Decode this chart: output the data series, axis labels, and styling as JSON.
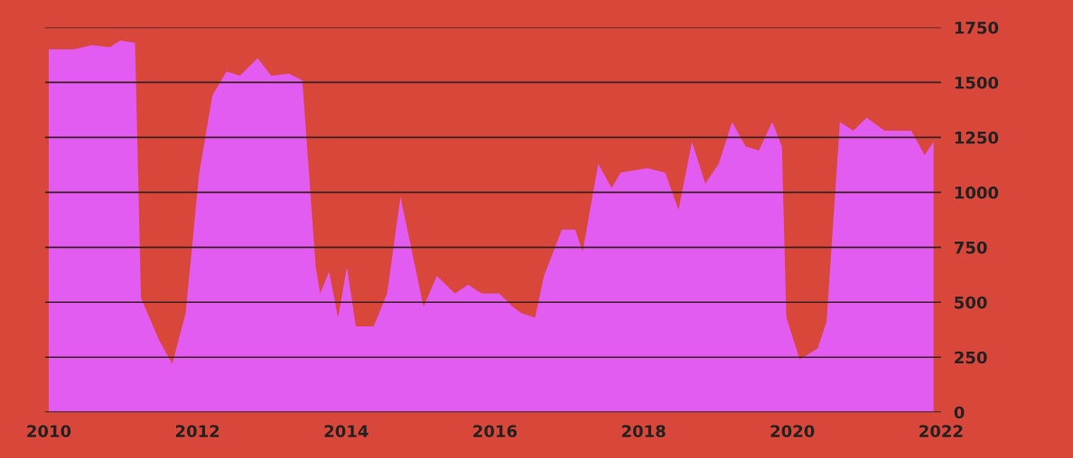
{
  "chart_data": {
    "type": "area",
    "x": [
      2010.0,
      2010.34,
      2010.58,
      2010.82,
      2010.96,
      2011.16,
      2011.24,
      2011.48,
      2011.66,
      2011.84,
      2012.02,
      2012.2,
      2012.39,
      2012.57,
      2012.81,
      2012.99,
      2013.23,
      2013.41,
      2013.59,
      2013.65,
      2013.77,
      2013.89,
      2014.01,
      2014.13,
      2014.37,
      2014.55,
      2014.73,
      2015.04,
      2015.22,
      2015.46,
      2015.64,
      2015.82,
      2016.06,
      2016.24,
      2016.36,
      2016.54,
      2016.66,
      2016.9,
      2017.08,
      2017.18,
      2017.39,
      2017.57,
      2017.69,
      2018.05,
      2018.29,
      2018.47,
      2018.65,
      2018.83,
      2019.01,
      2019.19,
      2019.37,
      2019.55,
      2019.73,
      2019.86,
      2019.92,
      2020.1,
      2020.34,
      2020.46,
      2020.64,
      2020.82,
      2021.0,
      2021.24,
      2021.6,
      2021.78,
      2021.9
    ],
    "values": [
      1650,
      1650,
      1670,
      1660,
      1690,
      1680,
      520,
      330,
      220,
      450,
      1080,
      1440,
      1550,
      1530,
      1610,
      1530,
      1540,
      1510,
      660,
      540,
      640,
      430,
      660,
      390,
      390,
      540,
      980,
      480,
      620,
      540,
      580,
      540,
      540,
      480,
      450,
      430,
      620,
      830,
      830,
      730,
      1130,
      1020,
      1090,
      1110,
      1090,
      920,
      1230,
      1040,
      1130,
      1320,
      1210,
      1190,
      1320,
      1210,
      430,
      240,
      290,
      410,
      1320,
      1280,
      1340,
      1280,
      1280,
      1170,
      1230
    ],
    "color": "#e25cf2",
    "xlim": [
      2009.95,
      2022.0
    ],
    "xticks": [
      2010,
      2012,
      2014,
      2016,
      2018,
      2020,
      2022
    ],
    "ylim": [
      0,
      1750
    ],
    "yticks": [
      0,
      250,
      500,
      750,
      1000,
      1250,
      1500,
      1750
    ],
    "grid": "y"
  }
}
